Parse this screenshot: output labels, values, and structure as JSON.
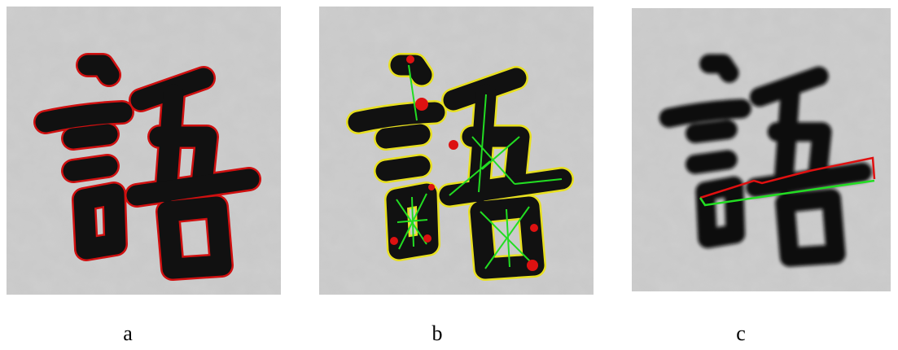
{
  "figure": {
    "panels": [
      {
        "label": "a"
      },
      {
        "label": "b"
      },
      {
        "label": "c"
      }
    ]
  }
}
